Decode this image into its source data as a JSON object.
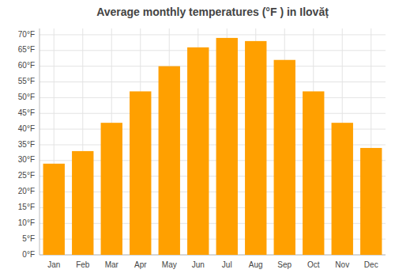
{
  "chart_data": {
    "type": "bar",
    "title": "Average monthly temperatures (°F ) in Ilovăț",
    "categories": [
      "Jan",
      "Feb",
      "Mar",
      "Apr",
      "May",
      "Jun",
      "Jul",
      "Aug",
      "Sep",
      "Oct",
      "Nov",
      "Dec"
    ],
    "values": [
      29,
      33,
      42,
      52,
      60,
      66,
      69,
      68,
      62,
      52,
      42,
      34
    ],
    "color": "#FFA000",
    "ylim": [
      0,
      72
    ],
    "yticks": [
      {
        "value": 0,
        "label": "0°F"
      },
      {
        "value": 5,
        "label": "5°F"
      },
      {
        "value": 10,
        "label": "10°F"
      },
      {
        "value": 15,
        "label": "15°F"
      },
      {
        "value": 20,
        "label": "20°F"
      },
      {
        "value": 25,
        "label": "25°F"
      },
      {
        "value": 30,
        "label": "30°F"
      },
      {
        "value": 35,
        "label": "35°F"
      },
      {
        "value": 40,
        "label": "40°F"
      },
      {
        "value": 45,
        "label": "45°F"
      },
      {
        "value": 50,
        "label": "50°F"
      },
      {
        "value": 55,
        "label": "55°F"
      },
      {
        "value": 60,
        "label": "60°F"
      },
      {
        "value": 65,
        "label": "65°F"
      },
      {
        "value": 70,
        "label": "70°F"
      }
    ],
    "grid": true
  }
}
